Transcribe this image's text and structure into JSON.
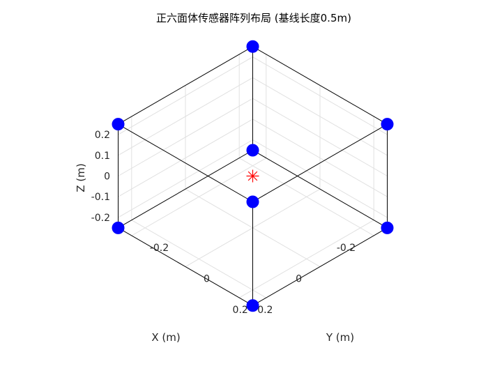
{
  "chart_data": {
    "type": "scatter",
    "title": "正六面体传感器阵列布局 (基线长度0.5m)",
    "xlabel": "X (m)",
    "ylabel": "Y (m)",
    "zlabel": "Z (m)",
    "xlim": [
      -0.25,
      0.25
    ],
    "ylim": [
      -0.25,
      0.25
    ],
    "zlim": [
      -0.25,
      0.25
    ],
    "xticks": [
      {
        "value": -0.2,
        "label": "-0.2"
      },
      {
        "value": 0,
        "label": "0"
      },
      {
        "value": 0.2,
        "label": "0.2"
      }
    ],
    "yticks": [
      {
        "value": -0.2,
        "label": "-0.2"
      },
      {
        "value": 0,
        "label": "0"
      },
      {
        "value": 0.2,
        "label": "0.2"
      }
    ],
    "zticks": [
      {
        "value": -0.2,
        "label": "-0.2"
      },
      {
        "value": -0.1,
        "label": "-0.1"
      },
      {
        "value": 0,
        "label": "0"
      },
      {
        "value": 0.1,
        "label": "0.1"
      },
      {
        "value": 0.2,
        "label": "0.2"
      }
    ],
    "grid": true,
    "view": "isometric",
    "sensors": {
      "color": "#0000ff",
      "marker": "filled-circle",
      "points": [
        {
          "x": -0.25,
          "y": -0.25,
          "z": -0.25
        },
        {
          "x": 0.25,
          "y": -0.25,
          "z": -0.25
        },
        {
          "x": 0.25,
          "y": 0.25,
          "z": -0.25
        },
        {
          "x": -0.25,
          "y": 0.25,
          "z": -0.25
        },
        {
          "x": -0.25,
          "y": -0.25,
          "z": 0.25
        },
        {
          "x": 0.25,
          "y": -0.25,
          "z": 0.25
        },
        {
          "x": 0.25,
          "y": 0.25,
          "z": 0.25
        },
        {
          "x": -0.25,
          "y": 0.25,
          "z": 0.25
        }
      ]
    },
    "center": {
      "x": 0,
      "y": 0,
      "z": 0,
      "color": "#ff0000",
      "marker": "asterisk"
    },
    "edges": [
      [
        0,
        1
      ],
      [
        1,
        2
      ],
      [
        2,
        3
      ],
      [
        3,
        0
      ],
      [
        4,
        5
      ],
      [
        5,
        6
      ],
      [
        6,
        7
      ],
      [
        7,
        4
      ],
      [
        0,
        4
      ],
      [
        1,
        5
      ],
      [
        2,
        6
      ],
      [
        3,
        7
      ]
    ],
    "edge_color": "#000000"
  }
}
